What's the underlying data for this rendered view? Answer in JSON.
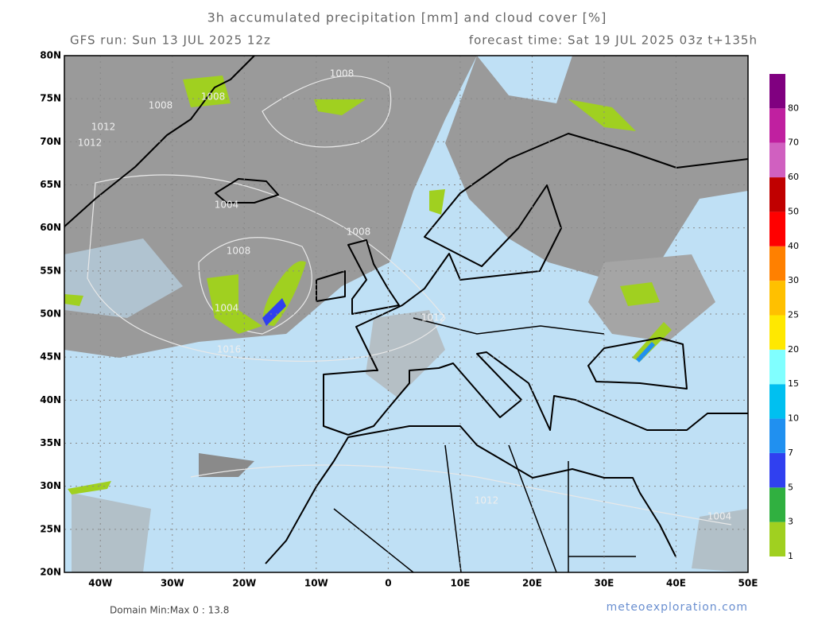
{
  "header": {
    "title": "3h accumulated precipitation [mm] and cloud cover [%]",
    "run": "GFS run: Sun 13 JUL 2025 12z",
    "forecast": "forecast time: Sat 19 JUL 2025 03z  t+135h"
  },
  "map": {
    "lat_labels": [
      "80N",
      "75N",
      "70N",
      "65N",
      "60N",
      "55N",
      "50N",
      "45N",
      "40N",
      "35N",
      "30N",
      "25N",
      "20N"
    ],
    "lon_labels": [
      "40W",
      "30W",
      "20W",
      "10W",
      "0",
      "10E",
      "20E",
      "30E",
      "40E",
      "50E"
    ],
    "isobar_labels": [
      "1008",
      "1008",
      "1008",
      "1012",
      "1012",
      "1004",
      "1008",
      "1008",
      "1004",
      "1016",
      "1012",
      "1012",
      "1004"
    ]
  },
  "legend": [
    {
      "label": "1",
      "color": "#a0d020"
    },
    {
      "label": "3",
      "color": "#30b040"
    },
    {
      "label": "5",
      "color": "#3040f0"
    },
    {
      "label": "7",
      "color": "#2090f0"
    },
    {
      "label": "10",
      "color": "#00c0f0"
    },
    {
      "label": "15",
      "color": "#80ffff"
    },
    {
      "label": "20",
      "color": "#ffe800"
    },
    {
      "label": "25",
      "color": "#ffc000"
    },
    {
      "label": "30",
      "color": "#ff8000"
    },
    {
      "label": "40",
      "color": "#ff0000"
    },
    {
      "label": "50",
      "color": "#c00000"
    },
    {
      "label": "60",
      "color": "#d060c0"
    },
    {
      "label": "70",
      "color": "#c020a0"
    },
    {
      "label": "80",
      "color": "#800080"
    }
  ],
  "footer": {
    "domain": "Domain Min:Max 0 : 13.8",
    "site": "meteoexploration.com"
  }
}
